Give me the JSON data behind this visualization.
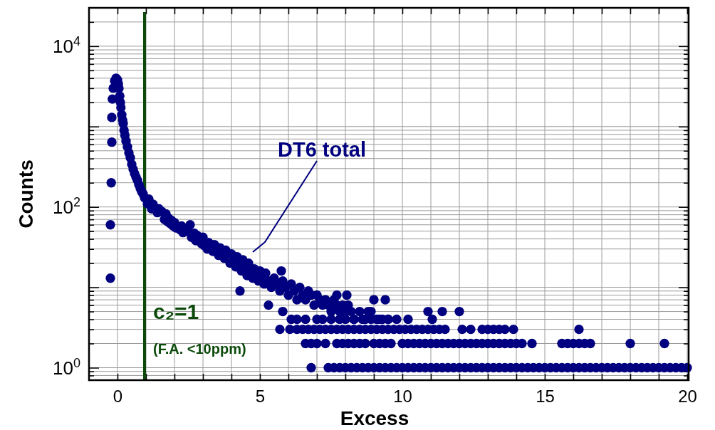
{
  "chart_data": {
    "type": "scatter",
    "xlabel": "Excess",
    "ylabel": "Counts",
    "log": true,
    "grid": true,
    "marker": "circle",
    "xlim": [
      -1,
      20.05
    ],
    "ylim": [
      0.7,
      30000
    ],
    "xticks": [
      0,
      {
        "value": 1,
        "label": null
      },
      {
        "value": 2,
        "label": null
      },
      {
        "value": 3,
        "label": null
      },
      {
        "value": 4,
        "label": null
      },
      5,
      {
        "value": 6,
        "label": null
      },
      {
        "value": 7,
        "label": null
      },
      {
        "value": 8,
        "label": null
      },
      {
        "value": 9,
        "label": null
      },
      10,
      {
        "value": 11,
        "label": null
      },
      {
        "value": 12,
        "label": null
      },
      {
        "value": 13,
        "label": null
      },
      {
        "value": 14,
        "label": null
      },
      15,
      {
        "value": 16,
        "label": null
      },
      {
        "value": 17,
        "label": null
      },
      {
        "value": 18,
        "label": null
      },
      {
        "value": 19,
        "label": null
      },
      20
    ],
    "yticks": [
      {
        "value": 0.8,
        "label": null
      },
      {
        "value": 0.9,
        "label": null
      },
      {
        "value": 1,
        "label": "10$^{0}$"
      },
      {
        "value": 2,
        "label": null
      },
      {
        "value": 3,
        "label": null
      },
      {
        "value": 4,
        "label": null
      },
      {
        "value": 5,
        "label": null
      },
      {
        "value": 6,
        "label": null
      },
      {
        "value": 7,
        "label": null
      },
      {
        "value": 8,
        "label": null
      },
      {
        "value": 9,
        "label": null
      },
      {
        "value": 10,
        "label": null
      },
      {
        "value": 20,
        "label": null
      },
      {
        "value": 30,
        "label": null
      },
      {
        "value": 40,
        "label": null
      },
      {
        "value": 50,
        "label": null
      },
      {
        "value": 60,
        "label": null
      },
      {
        "value": 70,
        "label": null
      },
      {
        "value": 80,
        "label": null
      },
      {
        "value": 90,
        "label": null
      },
      {
        "value": 100,
        "label": "10$^{2}$"
      },
      {
        "value": 200,
        "label": null
      },
      {
        "value": 300,
        "label": null
      },
      {
        "value": 400,
        "label": null
      },
      {
        "value": 500,
        "label": null
      },
      {
        "value": 600,
        "label": null
      },
      {
        "value": 700,
        "label": null
      },
      {
        "value": 800,
        "label": null
      },
      {
        "value": 900,
        "label": null
      },
      {
        "value": 1000,
        "label": null
      },
      {
        "value": 2000,
        "label": null
      },
      {
        "value": 3000,
        "label": null
      },
      {
        "value": 4000,
        "label": null
      },
      {
        "value": 5000,
        "label": null
      },
      {
        "value": 6000,
        "label": null
      },
      {
        "value": 7000,
        "label": null
      },
      {
        "value": 8000,
        "label": null
      },
      {
        "value": 9000,
        "label": null
      },
      {
        "value": 10000,
        "label": "10$^{4}$"
      },
      {
        "value": 20000,
        "label": null
      }
    ],
    "ref_lines": [
      {
        "axis": "x",
        "value": 0.95,
        "label": "c₂=1",
        "color": "#0b4a0b"
      }
    ],
    "annotations": [
      "(F.A. <10ppm)"
    ],
    "series": [
      {
        "name": "DT6 total",
        "color": "#000080",
        "x": [
          -0.25,
          -0.25,
          -0.22,
          -0.2,
          -0.2,
          -0.18,
          -0.15,
          -0.1,
          -0.05,
          0,
          0.03,
          0.05,
          0.08,
          0.1,
          0.12,
          0.15,
          0.18,
          0.2,
          0.23,
          0.26,
          0.3,
          0.35,
          0.4,
          0.45,
          0.5,
          0.55,
          0.6,
          0.65,
          0.7,
          0.75,
          0.8,
          0.85,
          0.9,
          0.95,
          1.05,
          1.1,
          1.2,
          1.25,
          1.4,
          1.45,
          1.55,
          1.65,
          1.7,
          1.75,
          1.8,
          1.85,
          1.9,
          1.95,
          2.0,
          2.05,
          2.2,
          2.25,
          2.3,
          2.45,
          2.55,
          2.6,
          2.7,
          2.75,
          2.8,
          2.95,
          3.0,
          3.05,
          3.15,
          3.2,
          3.35,
          3.4,
          3.55,
          3.6,
          3.75,
          3.8,
          3.95,
          4.0,
          4.1,
          4.15,
          4.2,
          4.3,
          4.35,
          4.4,
          4.5,
          4.55,
          4.6,
          4.7,
          4.75,
          4.8,
          4.9,
          4.95,
          5.0,
          5.1,
          5.15,
          5.2,
          5.3,
          5.4,
          5.5,
          5.6,
          5.7,
          5.8,
          5.9,
          6.0,
          6.1,
          6.2,
          6.3,
          6.4,
          6.5,
          6.6,
          6.7,
          6.8,
          6.9,
          7.0,
          7.1,
          7.2,
          7.3,
          7.4,
          7.5,
          7.6,
          7.7,
          7.8,
          7.9,
          8.0,
          8.1,
          8.2,
          8.3,
          8.5,
          8.7,
          8.9,
          9.1,
          9.3,
          9.5,
          5.3,
          5.8,
          4.3,
          5.75,
          7.7,
          8.05,
          9.0,
          9.4,
          8.8,
          10.9,
          11.4,
          12.0,
          6.1,
          6.3,
          6.6,
          7.0,
          7.2,
          7.5,
          7.8,
          8.0,
          8.3,
          8.6,
          8.9,
          9.2,
          9.5,
          9.8,
          10.2,
          11.05,
          5.7,
          6.05,
          6.3,
          6.5,
          6.7,
          6.9,
          7.1,
          7.3,
          7.5,
          7.7,
          7.9,
          8.1,
          8.3,
          8.5,
          8.7,
          8.9,
          9.1,
          9.3,
          9.5,
          9.7,
          9.9,
          10.1,
          10.3,
          10.5,
          10.7,
          10.9,
          11.1,
          11.3,
          11.5,
          12.1,
          12.4,
          12.8,
          13.0,
          13.2,
          13.4,
          13.6,
          13.9,
          16.2,
          6.6,
          6.8,
          7.0,
          7.3,
          7.7,
          7.9,
          8.1,
          8.3,
          8.5,
          8.7,
          9.0,
          9.2,
          9.4,
          9.6,
          10.0,
          10.2,
          10.4,
          10.6,
          10.8,
          11.0,
          11.2,
          11.4,
          11.6,
          11.8,
          12.0,
          12.2,
          12.4,
          12.6,
          12.8,
          13.0,
          13.2,
          13.4,
          13.6,
          13.8,
          14.0,
          14.2,
          14.55,
          15.6,
          15.8,
          16.0,
          16.2,
          16.4,
          16.6,
          18.0,
          19.2,
          6.8,
          7.4,
          7.6,
          7.8,
          8.0,
          8.2,
          8.4,
          8.6,
          8.8,
          9.0,
          9.2,
          9.4,
          9.6,
          9.8,
          10.0,
          10.2,
          10.4,
          10.6,
          10.8,
          11.0,
          11.2,
          11.4,
          11.6,
          11.8,
          12.0,
          12.2,
          12.4,
          12.6,
          12.8,
          13.0,
          13.2,
          13.4,
          13.6,
          13.8,
          14.0,
          14.2,
          14.4,
          14.6,
          14.8,
          15.0,
          15.2,
          15.4,
          15.6,
          15.8,
          16.0,
          16.2,
          16.4,
          16.6,
          16.8,
          17.0,
          17.2,
          17.4,
          17.6,
          17.8,
          18.0,
          18.2,
          18.4,
          18.6,
          18.8,
          19.0,
          19.2,
          19.4,
          19.6,
          19.8,
          20.0
        ],
        "values": [
          13,
          60,
          200,
          640,
          1300,
          2200,
          3000,
          3700,
          4000,
          3800,
          3400,
          3000,
          2400,
          2000,
          1730,
          1400,
          1200,
          1090,
          900,
          780,
          660,
          560,
          470,
          410,
          340,
          295,
          260,
          235,
          215,
          190,
          170,
          155,
          145,
          130,
          110,
          125,
          95,
          108,
          85,
          95,
          88,
          70,
          82,
          66,
          72,
          62,
          68,
          58,
          64,
          55,
          52,
          58,
          48,
          50,
          60,
          42,
          47,
          38,
          44,
          35,
          42,
          33,
          30,
          36,
          28,
          34,
          25,
          31,
          23,
          29,
          20,
          26,
          22,
          18,
          24,
          20,
          16,
          22,
          18,
          14,
          20,
          16,
          13,
          17,
          14,
          12,
          16,
          13,
          11,
          15,
          12,
          10,
          13,
          11,
          9,
          12,
          10,
          8,
          11,
          9,
          7,
          10,
          8,
          7,
          9,
          8,
          6,
          8,
          7,
          6,
          7,
          6,
          5,
          7,
          6,
          5,
          6,
          5,
          6,
          5,
          4,
          5,
          4,
          5,
          4,
          4,
          4,
          6,
          5,
          9,
          16,
          8,
          8,
          7,
          7,
          5,
          5,
          5,
          5,
          4,
          4,
          4,
          4,
          4,
          4,
          4,
          4,
          4,
          4,
          4,
          4,
          4,
          4,
          4,
          4,
          3,
          3,
          3,
          3,
          3,
          3,
          3,
          3,
          3,
          3,
          3,
          3,
          3,
          3,
          3,
          3,
          3,
          3,
          3,
          3,
          3,
          3,
          3,
          3,
          3,
          3,
          3,
          3,
          3,
          3,
          3,
          3,
          3,
          3,
          3,
          3,
          3,
          3,
          2,
          2,
          2,
          2,
          2,
          2,
          2,
          2,
          2,
          2,
          2,
          2,
          2,
          2,
          2,
          2,
          2,
          2,
          2,
          2,
          2,
          2,
          2,
          2,
          2,
          2,
          2,
          2,
          2,
          2,
          2,
          2,
          2,
          2,
          2,
          2,
          2,
          2,
          2,
          2,
          2,
          2,
          2,
          2,
          2,
          1,
          1,
          1,
          1,
          1,
          1,
          1,
          1,
          1,
          1,
          1,
          1,
          1,
          1,
          1,
          1,
          1,
          1,
          1,
          1,
          1,
          1,
          1,
          1,
          1,
          1,
          1,
          1,
          1,
          1,
          1,
          1,
          1,
          1,
          1,
          1,
          1,
          1,
          1,
          1,
          1,
          1,
          1,
          1,
          1,
          1,
          1,
          1,
          1,
          1,
          1,
          1,
          1,
          1,
          1,
          1,
          1,
          1,
          1,
          1,
          1,
          1,
          1,
          1,
          1
        ]
      }
    ]
  }
}
